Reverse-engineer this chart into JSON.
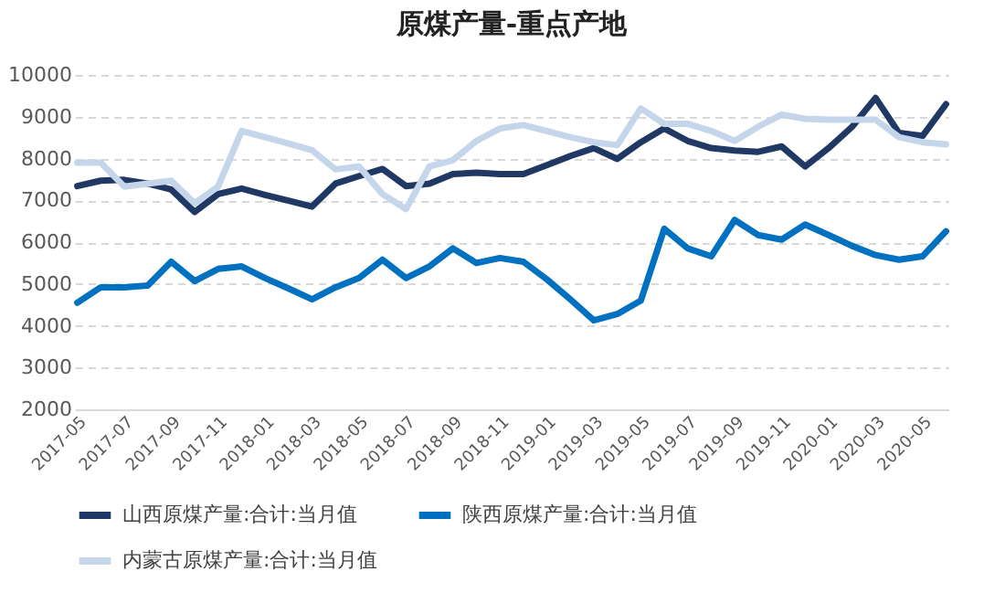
{
  "chart_data": {
    "type": "line",
    "title": "原煤产量-重点产地",
    "categories": [
      "2017-05",
      null,
      "2017-07",
      null,
      "2017-09",
      null,
      "2017-11",
      null,
      "2018-01",
      null,
      "2018-03",
      null,
      "2018-05",
      null,
      "2018-07",
      null,
      "2018-09",
      null,
      "2018-11",
      null,
      "2019-01",
      null,
      "2019-03",
      null,
      "2019-05",
      null,
      "2019-07",
      null,
      "2019-09",
      null,
      "2019-11",
      null,
      "2020-01",
      null,
      "2020-03",
      null,
      "2020-05",
      null
    ],
    "series": [
      {
        "name": "山西原煤产量:合计:当月值",
        "color": "#203864",
        "values": [
          7340,
          7470,
          7490,
          7400,
          7260,
          6720,
          7150,
          7280,
          7130,
          6990,
          6850,
          7400,
          7580,
          7750,
          7340,
          7400,
          7630,
          7660,
          7630,
          7630,
          7840,
          8060,
          8250,
          7990,
          8390,
          8720,
          8420,
          8250,
          8190,
          8160,
          8290,
          7810,
          8250,
          8760,
          9450,
          8610,
          8540,
          9300
        ]
      },
      {
        "name": "陕西原煤产量:合计:当月值",
        "color": "#0070c0",
        "values": [
          4550,
          4920,
          4920,
          4960,
          5530,
          5070,
          5360,
          5420,
          5140,
          4890,
          4630,
          4920,
          5140,
          5580,
          5140,
          5420,
          5850,
          5500,
          5620,
          5530,
          5110,
          4630,
          4130,
          4280,
          4600,
          6320,
          5850,
          5660,
          6530,
          6170,
          6060,
          6420,
          6170,
          5910,
          5690,
          5580,
          5660,
          6260
        ]
      },
      {
        "name": "内蒙古原煤产量:合计:当月值",
        "color": "#c5d5ea",
        "values": [
          7900,
          7900,
          7330,
          7400,
          7470,
          6930,
          7330,
          8660,
          8510,
          8360,
          8200,
          7740,
          7810,
          7150,
          6790,
          7810,
          7960,
          8420,
          8720,
          8800,
          8660,
          8510,
          8390,
          8320,
          9200,
          8830,
          8830,
          8660,
          8420,
          8760,
          9050,
          8950,
          8930,
          8930,
          8930,
          8510,
          8390,
          8340
        ]
      }
    ],
    "ylim": [
      2000,
      10000
    ],
    "yticks": [
      2000,
      3000,
      4000,
      5000,
      6000,
      7000,
      8000,
      9000,
      10000
    ],
    "grid": "y",
    "legend": "bottom",
    "marker": "none",
    "line_style": "solid"
  }
}
